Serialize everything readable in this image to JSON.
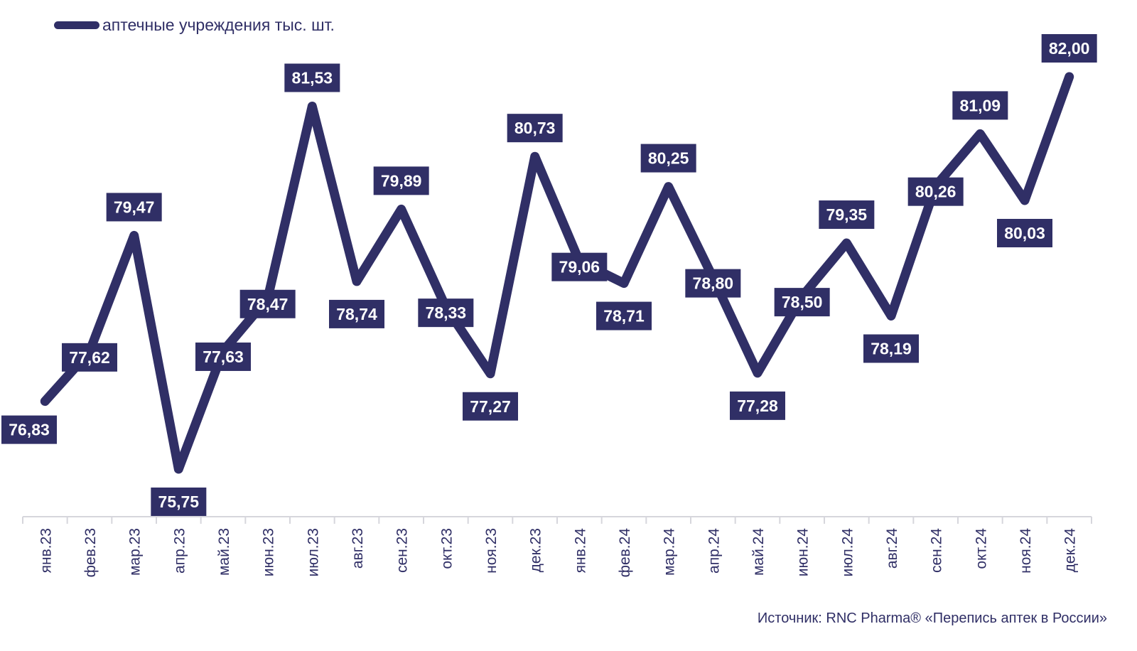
{
  "colors": {
    "series": "#302f66",
    "label_bg": "#302f66",
    "label_text": "#ffffff",
    "axis": "#d6d6dc",
    "tick_text": "#302f66"
  },
  "chart_data": {
    "type": "line",
    "categories": [
      "янв.23",
      "фев.23",
      "мар.23",
      "апр.23",
      "май.23",
      "июн.23",
      "июл.23",
      "авг.23",
      "сен.23",
      "окт.23",
      "ноя.23",
      "дек.23",
      "янв.24",
      "фев.24",
      "мар.24",
      "апр.24",
      "май.24",
      "июн.24",
      "июл.24",
      "авг.24",
      "сен.24",
      "окт.24",
      "ноя.24",
      "дек.24"
    ],
    "series": [
      {
        "name": "аптечные учреждения тыс. шт.",
        "values": [
          76.83,
          77.62,
          79.47,
          75.75,
          77.63,
          78.47,
          81.53,
          78.74,
          79.89,
          78.33,
          77.27,
          80.73,
          79.06,
          78.71,
          80.25,
          78.8,
          77.28,
          78.5,
          79.35,
          78.19,
          80.26,
          81.09,
          80.03,
          82.0
        ],
        "labels": [
          "76,83",
          "77,62",
          "79,47",
          "75,75",
          "77,63",
          "78,47",
          "81,53",
          "78,74",
          "79,89",
          "78,33",
          "77,27",
          "80,73",
          "79,06",
          "78,71",
          "80,25",
          "78,80",
          "77,28",
          "78,50",
          "79,35",
          "78,19",
          "80,26",
          "81,09",
          "80,03",
          "82,00"
        ]
      }
    ],
    "legend_position": "top-left",
    "grid": false,
    "source": "Источник: RNC Pharma® «Перепись аптек в России»"
  }
}
